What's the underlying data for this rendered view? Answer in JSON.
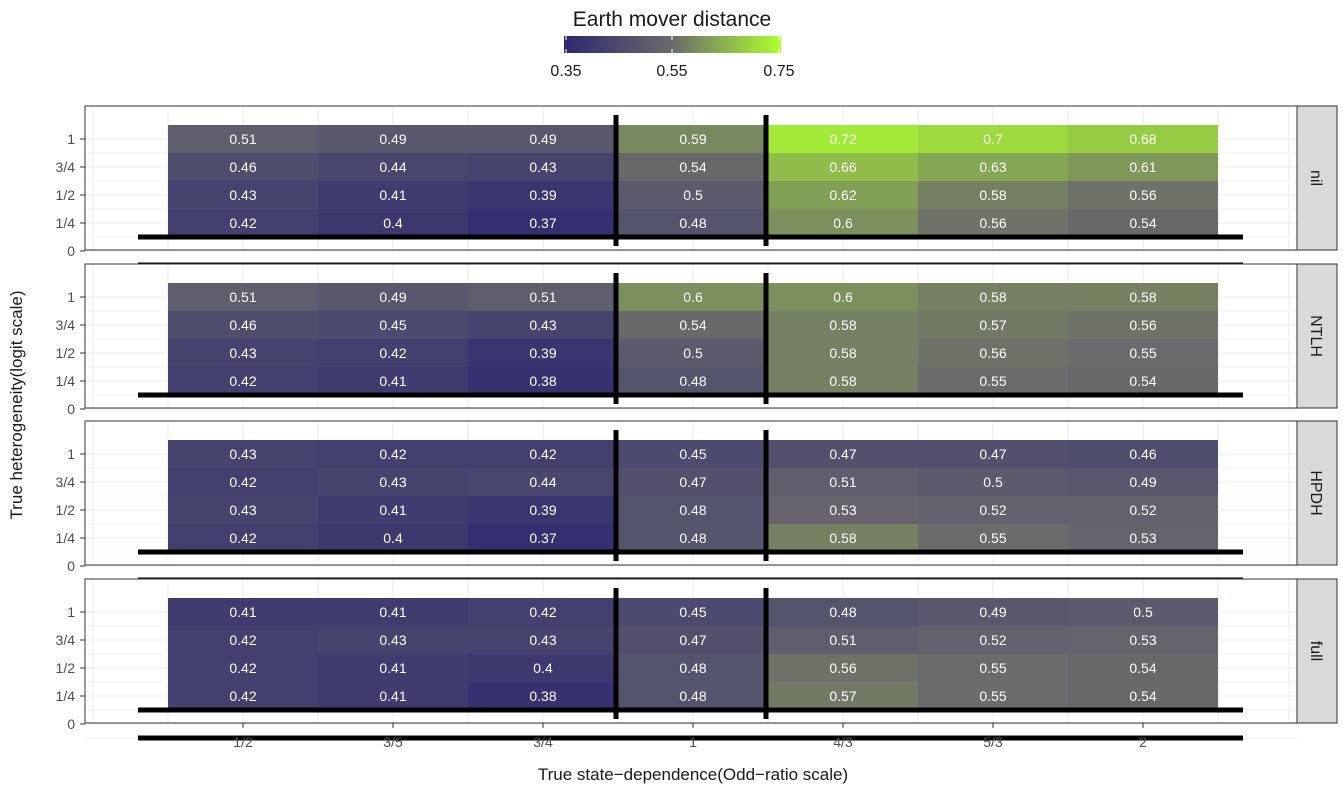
{
  "chart_data": {
    "type": "heatmap",
    "legend": {
      "title": "Earth mover distance",
      "ticks": [
        "0.35",
        "0.55",
        "0.75"
      ],
      "range": [
        0.35,
        0.75
      ],
      "colors": {
        "low": "#2d2870",
        "mid": "#6b6b6b",
        "high": "#adff2f"
      }
    },
    "xlabel": "True state−dependence(Odd−ratio scale)",
    "ylabel": "True heterogeneity(logit scale)",
    "x_categories": [
      "1/2",
      "3/5",
      "3/4",
      "1",
      "4/3",
      "5/3",
      "2"
    ],
    "y_categories": [
      "0",
      "1/4",
      "1/2",
      "3/4",
      "1"
    ],
    "panels": [
      {
        "name": "nil",
        "values": [
          [
            0.42,
            0.4,
            0.37,
            0.48,
            0.6,
            0.56,
            0.54
          ],
          [
            0.43,
            0.41,
            0.39,
            0.5,
            0.62,
            0.58,
            0.56
          ],
          [
            0.46,
            0.44,
            0.43,
            0.54,
            0.66,
            0.63,
            0.61
          ],
          [
            0.51,
            0.49,
            0.49,
            0.59,
            0.72,
            0.7,
            0.68
          ]
        ]
      },
      {
        "name": "NTLH",
        "values": [
          [
            0.42,
            0.41,
            0.38,
            0.48,
            0.58,
            0.55,
            0.54
          ],
          [
            0.43,
            0.42,
            0.39,
            0.5,
            0.58,
            0.56,
            0.55
          ],
          [
            0.46,
            0.45,
            0.43,
            0.54,
            0.58,
            0.57,
            0.56
          ],
          [
            0.51,
            0.49,
            0.51,
            0.6,
            0.6,
            0.58,
            0.58
          ]
        ]
      },
      {
        "name": "HPDH",
        "values": [
          [
            0.42,
            0.4,
            0.37,
            0.48,
            0.58,
            0.55,
            0.53
          ],
          [
            0.43,
            0.41,
            0.39,
            0.48,
            0.53,
            0.52,
            0.52
          ],
          [
            0.42,
            0.43,
            0.44,
            0.47,
            0.51,
            0.5,
            0.49
          ],
          [
            0.43,
            0.42,
            0.42,
            0.45,
            0.47,
            0.47,
            0.46
          ]
        ]
      },
      {
        "name": "full",
        "values": [
          [
            0.42,
            0.41,
            0.38,
            0.48,
            0.57,
            0.55,
            0.54
          ],
          [
            0.42,
            0.41,
            0.4,
            0.48,
            0.56,
            0.55,
            0.54
          ],
          [
            0.42,
            0.43,
            0.43,
            0.47,
            0.51,
            0.52,
            0.53
          ],
          [
            0.41,
            0.41,
            0.42,
            0.45,
            0.48,
            0.49,
            0.5
          ]
        ]
      }
    ],
    "row_tick_values": [
      "1",
      "3/4",
      "1/2",
      "1/4",
      "0"
    ],
    "grid": true
  }
}
